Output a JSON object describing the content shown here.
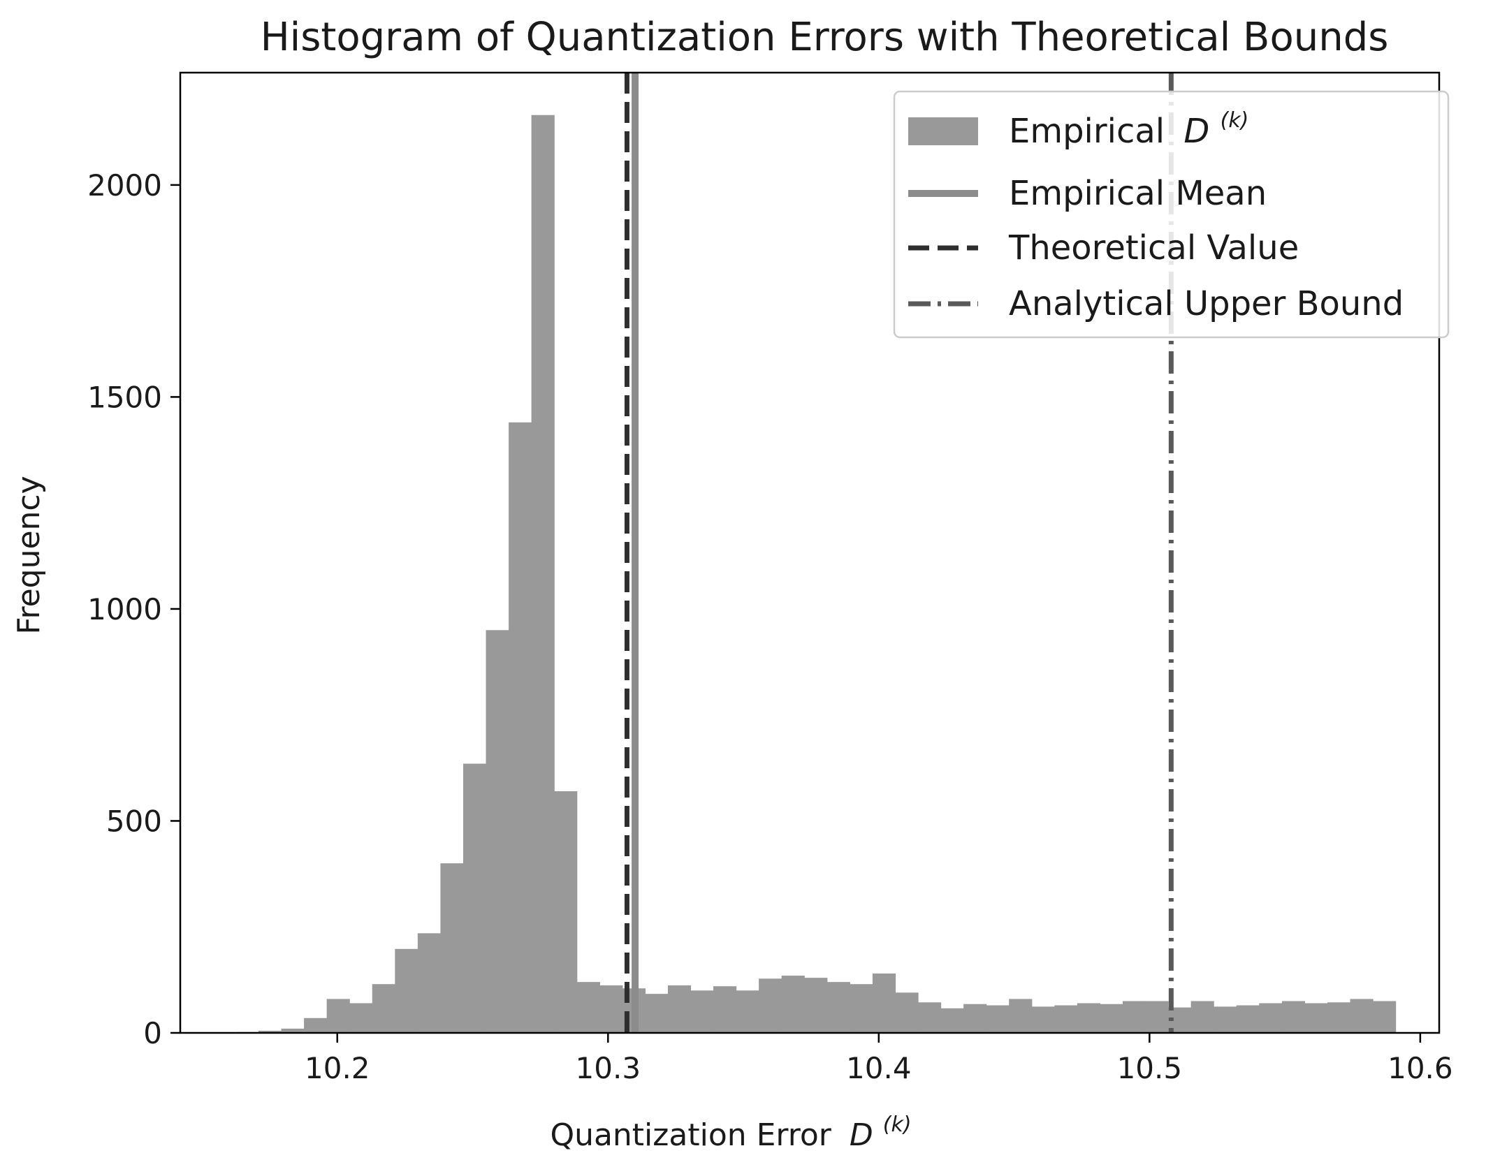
{
  "chart_data": {
    "type": "bar",
    "title": "Histogram of Quantization Errors with Theoretical Bounds",
    "xlabel": "Quantization Error",
    "xlabel_symbol": "D",
    "xlabel_superscript": "(k)",
    "ylabel": "Frequency",
    "xlim": [
      10.142,
      10.607
    ],
    "ylim": [
      0,
      2265
    ],
    "x_ticks": [
      10.2,
      10.3,
      10.4,
      10.5,
      10.6
    ],
    "x_tick_labels": [
      "10.2",
      "10.3",
      "10.4",
      "10.5",
      "10.6"
    ],
    "y_ticks": [
      0,
      500,
      1000,
      1500,
      2000
    ],
    "y_tick_labels": [
      "0",
      "500",
      "1000",
      "1500",
      "2000"
    ],
    "grid": false,
    "legend_position": "top-right",
    "histogram": {
      "bin_start": 10.1625,
      "bin_width": 0.0084,
      "counts": [
        2,
        5,
        10,
        35,
        80,
        70,
        115,
        198,
        235,
        400,
        635,
        950,
        1440,
        2165,
        570,
        120,
        112,
        105,
        92,
        112,
        100,
        110,
        100,
        128,
        135,
        130,
        120,
        115,
        140,
        95,
        72,
        58,
        68,
        65,
        80,
        62,
        65,
        70,
        68,
        75,
        75,
        60,
        75,
        62,
        65,
        70,
        75,
        70,
        72,
        80,
        75
      ],
      "color": "#999999"
    },
    "lines": {
      "empirical_mean": {
        "x": 10.31,
        "color": "#8c8c8c"
      },
      "theoretical_value": {
        "x": 10.307,
        "color": "#2e2e2e"
      },
      "analytical_upper_bound": {
        "x": 10.508,
        "color": "#5a5a5a"
      }
    },
    "legend": {
      "hist_label": "Empirical",
      "hist_symbol": "D",
      "hist_superscript": "(k)",
      "mean_label": "Empirical Mean",
      "theoretical_label": "Theoretical Value",
      "bound_label": "Analytical Upper Bound"
    }
  }
}
